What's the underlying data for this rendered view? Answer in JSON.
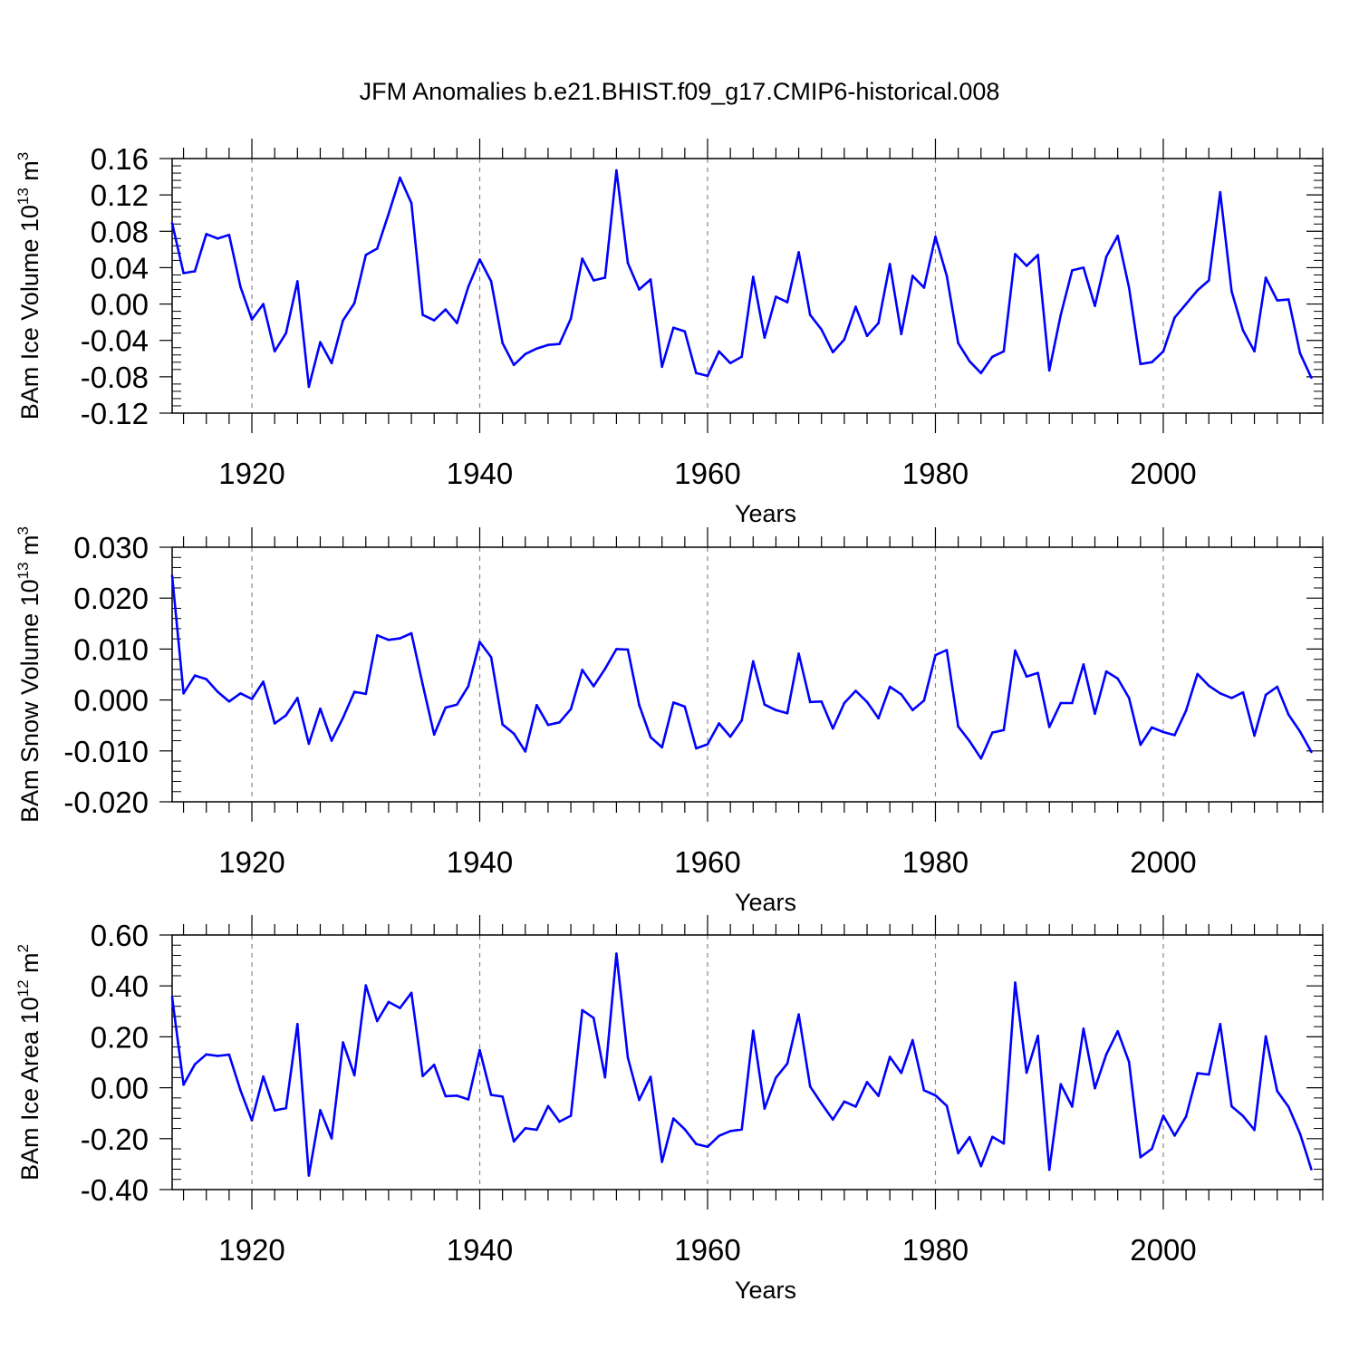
{
  "title": "JFM Anomalies b.e21.BHIST.f09_g17.CMIP6-historical.008",
  "line_color": "#0000ff",
  "chart_data": [
    {
      "type": "line",
      "ylabel": {
        "pre": "BAm Ice Volume 10",
        "sup1": "13",
        "mid": " m",
        "sup2": "3"
      },
      "xlabel": "Years",
      "xlim": [
        1913,
        2014
      ],
      "ylim": [
        -0.12,
        0.16
      ],
      "yticks": [
        0.16,
        0.12,
        0.08,
        0.04,
        0.0,
        -0.04,
        -0.08,
        -0.12
      ],
      "ytick_labels": [
        "0.16",
        "0.12",
        "0.08",
        "0.04",
        "0.00",
        "-0.04",
        "-0.08",
        "-0.12"
      ],
      "xticks": [
        1920,
        1940,
        1960,
        1980,
        2000
      ],
      "xtick_labels": [
        "1920",
        "1940",
        "1960",
        "1980",
        "2000"
      ],
      "grid_x": true,
      "x_start": 1913,
      "values": [
        0.089,
        0.034,
        0.036,
        0.077,
        0.072,
        0.076,
        0.019,
        -0.017,
        0.0,
        -0.052,
        -0.032,
        0.025,
        -0.091,
        -0.042,
        -0.065,
        -0.018,
        0.001,
        0.054,
        0.061,
        0.099,
        0.139,
        0.111,
        -0.012,
        -0.018,
        -0.006,
        -0.021,
        0.019,
        0.049,
        0.025,
        -0.043,
        -0.067,
        -0.055,
        -0.049,
        -0.045,
        -0.044,
        -0.016,
        0.05,
        0.026,
        0.029,
        0.147,
        0.045,
        0.016,
        0.027,
        -0.069,
        -0.026,
        -0.03,
        -0.076,
        -0.079,
        -0.052,
        -0.065,
        -0.058,
        0.03,
        -0.037,
        0.008,
        0.002,
        0.057,
        -0.012,
        -0.028,
        -0.053,
        -0.039,
        -0.003,
        -0.035,
        -0.021,
        0.044,
        -0.033,
        0.031,
        0.018,
        0.074,
        0.031,
        -0.043,
        -0.063,
        -0.076,
        -0.058,
        -0.052,
        0.055,
        0.042,
        0.054,
        -0.073,
        -0.012,
        0.037,
        0.04,
        -0.002,
        0.052,
        0.075,
        0.018,
        -0.066,
        -0.064,
        -0.052,
        -0.015,
        0.0,
        0.015,
        0.026,
        0.123,
        0.014,
        -0.029,
        -0.052,
        0.029,
        0.004,
        0.005,
        -0.054,
        -0.081
      ]
    },
    {
      "type": "line",
      "ylabel": {
        "pre": "BAm Snow Volume 10",
        "sup1": "13",
        "mid": " m",
        "sup2": "3"
      },
      "xlabel": "Years",
      "xlim": [
        1913,
        2014
      ],
      "ylim": [
        -0.02,
        0.03
      ],
      "yticks": [
        0.03,
        0.02,
        0.01,
        0.0,
        -0.01,
        -0.02
      ],
      "ytick_labels": [
        "0.030",
        "0.020",
        "0.010",
        "0.000",
        "-0.010",
        "-0.020"
      ],
      "xticks": [
        1920,
        1940,
        1960,
        1980,
        2000
      ],
      "xtick_labels": [
        "1920",
        "1940",
        "1960",
        "1980",
        "2000"
      ],
      "grid_x": true,
      "x_start": 1913,
      "values": [
        0.0244,
        0.0013,
        0.0048,
        0.0041,
        0.0016,
        -0.0003,
        0.0013,
        0.0002,
        0.0036,
        -0.0046,
        -0.003,
        0.0004,
        -0.0086,
        -0.0017,
        -0.008,
        -0.0035,
        0.0016,
        0.0012,
        0.0127,
        0.0118,
        0.0121,
        0.0131,
        0.003,
        -0.0068,
        -0.0015,
        -0.0009,
        0.0027,
        0.0114,
        0.0084,
        -0.0048,
        -0.0066,
        -0.0101,
        -0.001,
        -0.0049,
        -0.0044,
        -0.0018,
        0.0059,
        0.0027,
        0.0061,
        0.01,
        0.0099,
        -0.001,
        -0.0073,
        -0.0093,
        -0.0005,
        -0.0013,
        -0.0095,
        -0.0087,
        -0.0046,
        -0.0072,
        -0.004,
        0.0076,
        -0.0009,
        -0.002,
        -0.0026,
        0.0091,
        -0.0004,
        -0.0003,
        -0.0056,
        -0.0006,
        0.0018,
        -0.0004,
        -0.0036,
        0.0026,
        0.0011,
        -0.002,
        -0.0001,
        0.0088,
        0.0098,
        -0.0052,
        -0.0081,
        -0.0115,
        -0.0064,
        -0.0059,
        0.0097,
        0.0046,
        0.0053,
        -0.0053,
        -0.0006,
        -0.0006,
        0.007,
        -0.0027,
        0.0056,
        0.0042,
        0.0004,
        -0.0088,
        -0.0054,
        -0.0063,
        -0.0069,
        -0.0021,
        0.0051,
        0.0028,
        0.0013,
        0.0004,
        0.0015,
        -0.007,
        0.001,
        0.0026,
        -0.0029,
        -0.0062,
        -0.0102
      ]
    },
    {
      "type": "line",
      "ylabel": {
        "pre": "BAm Ice Area 10",
        "sup1": "12",
        "mid": " m",
        "sup2": "2"
      },
      "xlabel": "Years",
      "xlim": [
        1913,
        2014
      ],
      "ylim": [
        -0.4,
        0.6
      ],
      "yticks": [
        0.6,
        0.4,
        0.2,
        0.0,
        -0.2,
        -0.4
      ],
      "ytick_labels": [
        "0.60",
        "0.40",
        "0.20",
        "0.00",
        "-0.20",
        "-0.40"
      ],
      "xticks": [
        1920,
        1940,
        1960,
        1980,
        2000
      ],
      "xtick_labels": [
        "1920",
        "1940",
        "1960",
        "1980",
        "2000"
      ],
      "grid_x": true,
      "x_start": 1913,
      "values": [
        0.355,
        0.012,
        0.092,
        0.131,
        0.125,
        0.13,
        -0.01,
        -0.128,
        0.044,
        -0.089,
        -0.08,
        0.25,
        -0.345,
        -0.088,
        -0.199,
        0.178,
        0.049,
        0.402,
        0.262,
        0.337,
        0.313,
        0.373,
        0.046,
        0.09,
        -0.033,
        -0.031,
        -0.046,
        0.148,
        -0.028,
        -0.035,
        -0.211,
        -0.159,
        -0.165,
        -0.072,
        -0.133,
        -0.11,
        0.305,
        0.274,
        0.041,
        0.527,
        0.118,
        -0.048,
        0.043,
        -0.291,
        -0.121,
        -0.163,
        -0.221,
        -0.232,
        -0.189,
        -0.17,
        -0.164,
        0.224,
        -0.082,
        0.039,
        0.095,
        0.288,
        0.005,
        -0.062,
        -0.125,
        -0.054,
        -0.074,
        0.022,
        -0.032,
        0.121,
        0.058,
        0.187,
        -0.01,
        -0.03,
        -0.071,
        -0.257,
        -0.194,
        -0.308,
        -0.193,
        -0.219,
        0.413,
        0.059,
        0.204,
        -0.322,
        0.014,
        -0.074,
        0.232,
        -0.002,
        0.131,
        0.222,
        0.101,
        -0.273,
        -0.24,
        -0.11,
        -0.188,
        -0.113,
        0.057,
        0.052,
        0.25,
        -0.073,
        -0.111,
        -0.166,
        0.202,
        -0.013,
        -0.075,
        -0.18,
        -0.32
      ]
    }
  ]
}
